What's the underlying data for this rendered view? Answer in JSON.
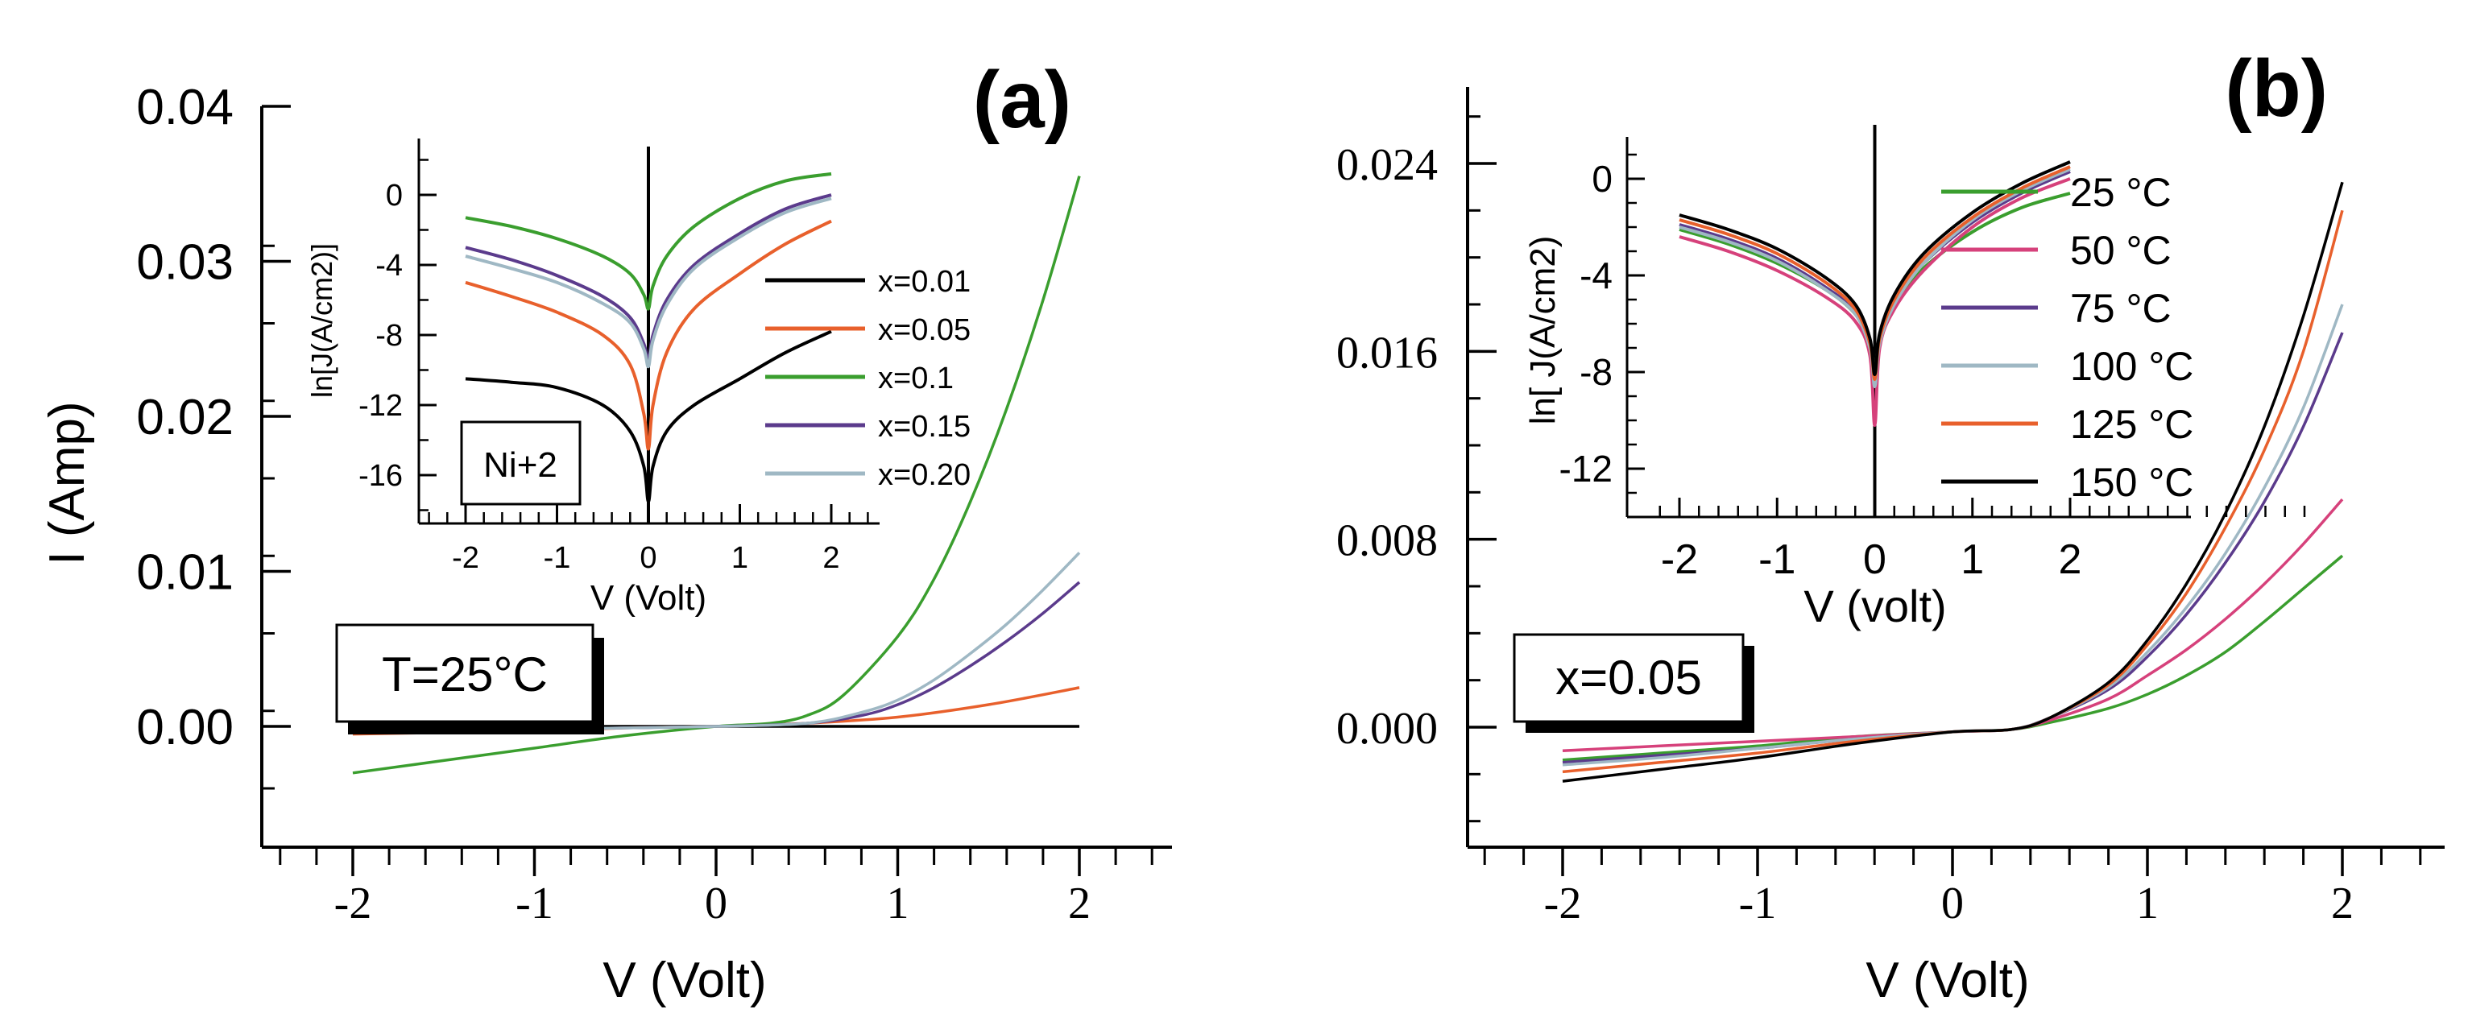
{
  "chart_data": [
    {
      "id": "a",
      "panel_label": "(a)",
      "type": "line",
      "xlabel": "V (Volt)",
      "ylabel": "I (Amp)",
      "xlim": [
        -2.5,
        2.5
      ],
      "ylim": [
        -0.008,
        0.04
      ],
      "xticks": [
        -2,
        -1,
        0,
        1,
        2
      ],
      "xtick_labels": [
        "-2",
        "-1",
        "0",
        "1",
        "2"
      ],
      "yticks": [
        0.0,
        0.01,
        0.02,
        0.03,
        0.04
      ],
      "ytick_labels": [
        "0.00",
        "0.01",
        "0.02",
        "0.03",
        "0.04"
      ],
      "annotation": "T=25°C",
      "series": [
        {
          "name": "x=0.01",
          "color": "#000000",
          "x": [
            -2,
            -1,
            0,
            1,
            2
          ],
          "y": [
            0,
            0,
            0,
            0,
            0
          ]
        },
        {
          "name": "x=0.05",
          "color": "#e8602c",
          "x": [
            -2,
            -1.5,
            -1,
            -0.5,
            0,
            0.5,
            1,
            1.5,
            2
          ],
          "y": [
            -0.0005,
            -0.0004,
            -0.0003,
            -0.0001,
            0,
            0.0002,
            0.0006,
            0.0014,
            0.0025
          ]
        },
        {
          "name": "x=0.1",
          "color": "#3a9e2e",
          "x": [
            -2,
            -1.5,
            -1,
            -0.5,
            0,
            0.3,
            0.5,
            0.7,
            1.0,
            1.2,
            1.4,
            1.6,
            1.8,
            2.0
          ],
          "y": [
            -0.003,
            -0.0022,
            -0.0014,
            -0.0006,
            0,
            0.0002,
            0.0007,
            0.002,
            0.0058,
            0.0095,
            0.0145,
            0.0205,
            0.0275,
            0.0355
          ]
        },
        {
          "name": "x=0.15",
          "color": "#5b3b8c",
          "x": [
            -2,
            -1.5,
            -1,
            -0.5,
            0,
            0.5,
            0.8,
            1.0,
            1.2,
            1.4,
            1.6,
            1.8,
            2.0
          ],
          "y": [
            -0.0004,
            -0.0003,
            -0.0002,
            -0.0001,
            0,
            0.0002,
            0.0007,
            0.0014,
            0.0025,
            0.0039,
            0.0055,
            0.0073,
            0.0093
          ]
        },
        {
          "name": "x=0.20",
          "color": "#9fb8c4",
          "x": [
            -2,
            -1.5,
            -1,
            -0.5,
            0,
            0.5,
            0.8,
            1.0,
            1.2,
            1.4,
            1.6,
            1.8,
            2.0
          ],
          "y": [
            -0.0004,
            -0.0003,
            -0.0002,
            -0.0001,
            0,
            0.0002,
            0.0009,
            0.0017,
            0.003,
            0.0047,
            0.0066,
            0.0088,
            0.0112
          ]
        }
      ],
      "inset": {
        "xlabel": "V (Volt)",
        "ylabel": "ln[J(A/cm2)]",
        "xlim": [
          -2.5,
          2.5
        ],
        "ylim": [
          -19,
          2
        ],
        "xticks": [
          -2,
          -1,
          0,
          1,
          2
        ],
        "xtick_labels": [
          "-2",
          "-1",
          "0",
          "1",
          "2"
        ],
        "yticks": [
          0,
          -4,
          -8,
          -12,
          -16
        ],
        "ytick_labels": [
          "0",
          "-4",
          "-8",
          "-12",
          "-16"
        ],
        "annotation": "Ni+2",
        "series": [
          {
            "name": "x=0.01",
            "color": "#000000",
            "x": [
              -2,
              -1.5,
              -1,
              -0.5,
              -0.2,
              -0.05,
              0,
              0.05,
              0.2,
              0.5,
              1,
              1.5,
              2
            ],
            "y": [
              -10.5,
              -10.7,
              -11.0,
              -12.0,
              -13.5,
              -15.5,
              -17.5,
              -15.5,
              -13.5,
              -12.0,
              -10.5,
              -9.0,
              -7.8
            ]
          },
          {
            "name": "x=0.05",
            "color": "#e8602c",
            "x": [
              -2,
              -1.5,
              -1,
              -0.5,
              -0.2,
              -0.05,
              0,
              0.05,
              0.2,
              0.5,
              1,
              1.5,
              2
            ],
            "y": [
              -5.0,
              -5.8,
              -6.7,
              -8.0,
              -9.7,
              -12.5,
              -14.5,
              -12.0,
              -9.0,
              -6.5,
              -4.5,
              -2.8,
              -1.5
            ]
          },
          {
            "name": "x=0.1",
            "color": "#3a9e2e",
            "x": [
              -2,
              -1.5,
              -1,
              -0.5,
              -0.2,
              -0.05,
              0,
              0.05,
              0.2,
              0.5,
              1,
              1.5,
              2
            ],
            "y": [
              -1.3,
              -1.8,
              -2.5,
              -3.5,
              -4.5,
              -5.7,
              -6.5,
              -5.2,
              -3.5,
              -1.8,
              -0.2,
              0.8,
              1.2
            ]
          },
          {
            "name": "x=0.15",
            "color": "#5b3b8c",
            "x": [
              -2,
              -1.5,
              -1,
              -0.5,
              -0.2,
              -0.05,
              0,
              0.05,
              0.2,
              0.5,
              1,
              1.5,
              2
            ],
            "y": [
              -3.0,
              -3.7,
              -4.6,
              -5.8,
              -7.0,
              -8.5,
              -9.5,
              -8.0,
              -6.0,
              -4.0,
              -2.2,
              -0.8,
              0.0
            ]
          },
          {
            "name": "x=0.20",
            "color": "#9fb8c4",
            "x": [
              -2,
              -1.5,
              -1,
              -0.5,
              -0.2,
              -0.05,
              0,
              0.05,
              0.2,
              0.5,
              1,
              1.5,
              2
            ],
            "y": [
              -3.5,
              -4.2,
              -5.0,
              -6.2,
              -7.3,
              -8.8,
              -9.8,
              -8.3,
              -6.3,
              -4.2,
              -2.4,
              -1.0,
              -0.2
            ]
          }
        ]
      }
    },
    {
      "id": "b",
      "panel_label": "(b)",
      "type": "line",
      "xlabel": "V (Volt)",
      "ylabel": "",
      "xlim": [
        -2.5,
        2.5
      ],
      "ylim": [
        -0.005,
        0.0275
      ],
      "xticks": [
        -2,
        -1,
        0,
        1,
        2
      ],
      "xtick_labels": [
        "-2",
        "-1",
        "0",
        "1",
        "2"
      ],
      "yticks": [
        0.0,
        0.008,
        0.016,
        0.024
      ],
      "ytick_labels": [
        "0.000",
        "0.008",
        "0.016",
        "0.024"
      ],
      "annotation": "x=0.05",
      "series": [
        {
          "name": "25 °C",
          "color": "#3a9e2e",
          "x": [
            -2,
            -1.5,
            -1,
            -0.5,
            0,
            0.3,
            0.5,
            0.8,
            1.0,
            1.2,
            1.4,
            1.6,
            1.8,
            2.0
          ],
          "y": [
            -0.0014,
            -0.0011,
            -0.0008,
            -0.0004,
            -0.0002,
            -0.0001,
            0.0002,
            0.0008,
            0.0014,
            0.0022,
            0.0032,
            0.0045,
            0.0059,
            0.0073
          ]
        },
        {
          "name": "50 °C",
          "color": "#d6417b",
          "x": [
            -2,
            -1.5,
            -1,
            -0.5,
            0,
            0.3,
            0.5,
            0.8,
            1.0,
            1.2,
            1.4,
            1.6,
            1.8,
            2.0
          ],
          "y": [
            -0.001,
            -0.0008,
            -0.0006,
            -0.0004,
            -0.0002,
            -0.0001,
            0.0003,
            0.0012,
            0.0022,
            0.0033,
            0.0046,
            0.0061,
            0.0078,
            0.0097
          ]
        },
        {
          "name": "75 °C",
          "color": "#5b3b8c",
          "x": [
            -2,
            -1.5,
            -1,
            -0.5,
            0,
            0.3,
            0.5,
            0.8,
            1.0,
            1.2,
            1.4,
            1.6,
            1.8,
            2.0
          ],
          "y": [
            -0.0015,
            -0.0012,
            -0.0009,
            -0.0005,
            -0.0002,
            -0.0001,
            0.0004,
            0.0016,
            0.003,
            0.0048,
            0.007,
            0.0096,
            0.0128,
            0.0168
          ]
        },
        {
          "name": "100 °C",
          "color": "#9fb8c4",
          "x": [
            -2,
            -1.5,
            -1,
            -0.5,
            0,
            0.3,
            0.5,
            0.8,
            1.0,
            1.2,
            1.4,
            1.6,
            1.8,
            2.0
          ],
          "y": [
            -0.0016,
            -0.0013,
            -0.0009,
            -0.0005,
            -0.0002,
            -0.0001,
            0.0004,
            0.0017,
            0.0032,
            0.0051,
            0.0074,
            0.0102,
            0.0136,
            0.018
          ]
        },
        {
          "name": "125 °C",
          "color": "#e8602c",
          "x": [
            -2,
            -1.5,
            -1,
            -0.5,
            0,
            0.3,
            0.5,
            0.8,
            1.0,
            1.2,
            1.4,
            1.6,
            1.8,
            2.0
          ],
          "y": [
            -0.0019,
            -0.0015,
            -0.0011,
            -0.0006,
            -0.0002,
            -0.0001,
            0.0004,
            0.0018,
            0.0035,
            0.0057,
            0.0085,
            0.0118,
            0.016,
            0.022
          ]
        },
        {
          "name": "150 °C",
          "color": "#000000",
          "x": [
            -2,
            -1.5,
            -1,
            -0.5,
            0,
            0.3,
            0.5,
            0.8,
            1.0,
            1.2,
            1.4,
            1.6,
            1.8,
            2.0
          ],
          "y": [
            -0.0023,
            -0.0018,
            -0.0013,
            -0.0007,
            -0.0002,
            -0.0001,
            0.0004,
            0.0019,
            0.0037,
            0.0061,
            0.0091,
            0.0128,
            0.0175,
            0.0232
          ]
        }
      ],
      "inset": {
        "xlabel": "V (volt)",
        "ylabel": "ln[ J(A/cm2)",
        "xlim": [
          -2.4,
          2.4
        ],
        "ylim": [
          -14,
          1.5
        ],
        "xticks": [
          -2,
          -1,
          0,
          1,
          2
        ],
        "xtick_labels": [
          "-2",
          "-1",
          "0",
          "1",
          "2"
        ],
        "yticks": [
          0,
          -4,
          -8,
          -12
        ],
        "ytick_labels": [
          "0",
          "-4",
          "-8",
          "-12"
        ],
        "series": [
          {
            "name": "25 °C",
            "color": "#3a9e2e",
            "x": [
              -2,
              -1.5,
              -1,
              -0.5,
              -0.2,
              -0.05,
              0,
              0.05,
              0.2,
              0.5,
              1,
              1.5,
              2
            ],
            "y": [
              -2.1,
              -2.7,
              -3.5,
              -4.6,
              -5.6,
              -6.8,
              -8.0,
              -6.6,
              -5.2,
              -3.7,
              -2.2,
              -1.2,
              -0.6
            ]
          },
          {
            "name": "50 °C",
            "color": "#d6417b",
            "x": [
              -2,
              -1.5,
              -1,
              -0.5,
              -0.2,
              -0.05,
              0,
              0.05,
              0.2,
              0.5,
              1,
              1.5,
              2
            ],
            "y": [
              -2.4,
              -3.0,
              -3.8,
              -4.9,
              -5.9,
              -7.3,
              -10.2,
              -7.0,
              -5.4,
              -3.8,
              -2.0,
              -0.8,
              0.0
            ]
          },
          {
            "name": "75 °C",
            "color": "#5b3b8c",
            "x": [
              -2,
              -1.5,
              -1,
              -0.5,
              -0.2,
              -0.05,
              0,
              0.05,
              0.2,
              0.5,
              1,
              1.5,
              2
            ],
            "y": [
              -1.9,
              -2.5,
              -3.3,
              -4.5,
              -5.5,
              -6.9,
              -8.5,
              -6.7,
              -5.1,
              -3.5,
              -1.8,
              -0.6,
              0.3
            ]
          },
          {
            "name": "100 °C",
            "color": "#9fb8c4",
            "x": [
              -2,
              -1.5,
              -1,
              -0.5,
              -0.2,
              -0.05,
              0,
              0.05,
              0.2,
              0.5,
              1,
              1.5,
              2
            ],
            "y": [
              -2.0,
              -2.6,
              -3.4,
              -4.6,
              -5.6,
              -7.0,
              -8.6,
              -6.8,
              -5.2,
              -3.5,
              -1.7,
              -0.5,
              0.4
            ]
          },
          {
            "name": "125 °C",
            "color": "#e8602c",
            "x": [
              -2,
              -1.5,
              -1,
              -0.5,
              -0.2,
              -0.05,
              0,
              0.05,
              0.2,
              0.5,
              1,
              1.5,
              2
            ],
            "y": [
              -1.7,
              -2.3,
              -3.1,
              -4.3,
              -5.4,
              -6.8,
              -8.3,
              -6.6,
              -5.0,
              -3.3,
              -1.6,
              -0.4,
              0.5
            ]
          },
          {
            "name": "150 °C",
            "color": "#000000",
            "x": [
              -2,
              -1.5,
              -1,
              -0.5,
              -0.2,
              -0.05,
              0,
              0.05,
              0.2,
              0.5,
              1,
              1.5,
              2
            ],
            "y": [
              -1.5,
              -2.1,
              -2.9,
              -4.1,
              -5.2,
              -6.6,
              -8.1,
              -6.4,
              -4.8,
              -3.1,
              -1.4,
              -0.2,
              0.7
            ]
          }
        ]
      }
    }
  ]
}
